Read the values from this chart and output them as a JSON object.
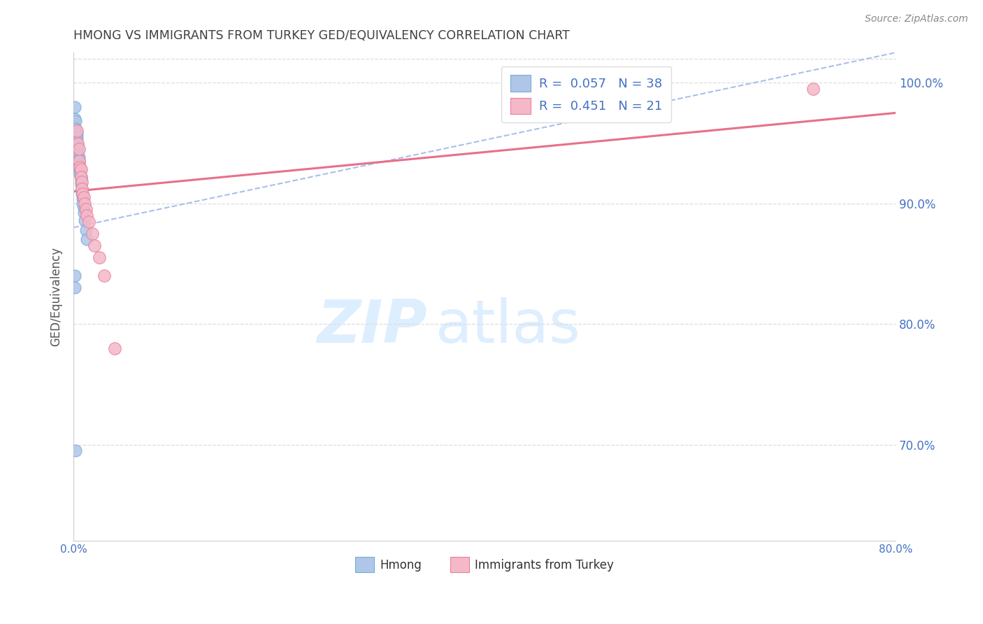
{
  "title": "HMONG VS IMMIGRANTS FROM TURKEY GED/EQUIVALENCY CORRELATION CHART",
  "source": "Source: ZipAtlas.com",
  "ylabel": "GED/Equivalency",
  "xmin": 0.0,
  "xmax": 0.8,
  "ymin": 0.62,
  "ymax": 1.025,
  "yticks": [
    0.7,
    0.8,
    0.9,
    1.0
  ],
  "ytick_labels": [
    "70.0%",
    "80.0%",
    "90.0%",
    "100.0%"
  ],
  "xticks": [
    0.0,
    0.1,
    0.2,
    0.3,
    0.4,
    0.5,
    0.6,
    0.7,
    0.8
  ],
  "xtick_labels": [
    "0.0%",
    "",
    "",
    "",
    "",
    "",
    "",
    "",
    "80.0%"
  ],
  "hmong_color": "#aec6e8",
  "turkey_color": "#f4b8c8",
  "hmong_edge_color": "#7aaad4",
  "turkey_edge_color": "#e8809a",
  "trend_hmong_color": "#aabfe8",
  "trend_turkey_color": "#e8708a",
  "legend_r_hmong": "0.057",
  "legend_n_hmong": "38",
  "legend_r_turkey": "0.451",
  "legend_n_turkey": "21",
  "label_hmong": "Hmong",
  "label_turkey": "Immigrants from Turkey",
  "hmong_x": [
    0.001,
    0.001,
    0.002,
    0.002,
    0.003,
    0.003,
    0.003,
    0.003,
    0.004,
    0.004,
    0.004,
    0.004,
    0.004,
    0.005,
    0.005,
    0.005,
    0.005,
    0.006,
    0.006,
    0.006,
    0.006,
    0.007,
    0.007,
    0.007,
    0.007,
    0.008,
    0.008,
    0.008,
    0.009,
    0.009,
    0.01,
    0.01,
    0.011,
    0.012,
    0.013,
    0.001,
    0.001,
    0.002
  ],
  "hmong_y": [
    0.98,
    0.97,
    0.968,
    0.962,
    0.958,
    0.955,
    0.952,
    0.95,
    0.948,
    0.946,
    0.944,
    0.942,
    0.94,
    0.938,
    0.936,
    0.934,
    0.932,
    0.93,
    0.928,
    0.926,
    0.924,
    0.922,
    0.92,
    0.918,
    0.916,
    0.912,
    0.91,
    0.908,
    0.904,
    0.9,
    0.896,
    0.892,
    0.886,
    0.878,
    0.87,
    0.84,
    0.83,
    0.695
  ],
  "turkey_x": [
    0.003,
    0.004,
    0.005,
    0.005,
    0.006,
    0.007,
    0.007,
    0.008,
    0.008,
    0.009,
    0.01,
    0.011,
    0.012,
    0.013,
    0.015,
    0.018,
    0.02,
    0.025,
    0.03,
    0.04,
    0.72
  ],
  "turkey_y": [
    0.96,
    0.95,
    0.945,
    0.935,
    0.93,
    0.928,
    0.922,
    0.918,
    0.912,
    0.908,
    0.905,
    0.9,
    0.895,
    0.89,
    0.885,
    0.875,
    0.865,
    0.855,
    0.84,
    0.78,
    0.995
  ],
  "trend_hmong_x0": 0.0,
  "trend_hmong_y0": 0.88,
  "trend_hmong_x1": 0.8,
  "trend_hmong_y1": 1.025,
  "trend_turkey_x0": 0.0,
  "trend_turkey_y0": 0.91,
  "trend_turkey_x1": 0.8,
  "trend_turkey_y1": 0.975,
  "background_color": "#ffffff",
  "grid_color": "#dddddd",
  "axis_label_color": "#4472c4",
  "title_color": "#404040",
  "watermark_zip": "ZIP",
  "watermark_atlas": "atlas",
  "watermark_color": "#ddeeff"
}
